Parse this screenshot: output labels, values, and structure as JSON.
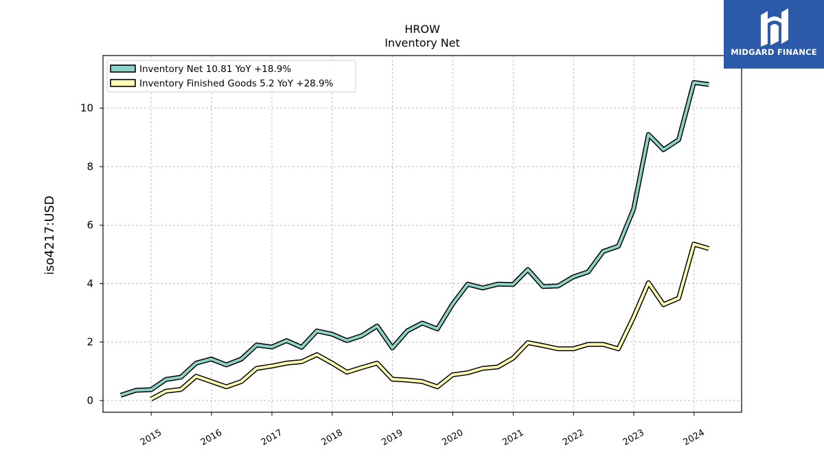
{
  "brand": {
    "name": "MIDGARD FINANCE",
    "color": "#2c5aa8"
  },
  "chart_data": {
    "type": "line",
    "title": "HROW",
    "subtitle": "Inventory Net",
    "ylabel": "iso4217:USD",
    "xlabel": "",
    "ylim": [
      -0.4,
      11.8
    ],
    "xlim": [
      "2014-03-15",
      "2024-10-15"
    ],
    "yticks": [
      0,
      2,
      4,
      6,
      8,
      10
    ],
    "xticks": [
      "2015",
      "2016",
      "2017",
      "2018",
      "2019",
      "2020",
      "2021",
      "2022",
      "2023",
      "2024"
    ],
    "grid": true,
    "legend_position": "top-left",
    "series": [
      {
        "name": "Inventory Net",
        "legend_label": "Inventory Net  10.81 YoY +18.9%",
        "color": "#8dd3c7",
        "points": [
          [
            "2014-06-30",
            0.18
          ],
          [
            "2014-09-30",
            0.35
          ],
          [
            "2014-12-31",
            0.37
          ],
          [
            "2015-03-31",
            0.72
          ],
          [
            "2015-06-30",
            0.8
          ],
          [
            "2015-09-30",
            1.28
          ],
          [
            "2015-12-31",
            1.42
          ],
          [
            "2016-03-31",
            1.22
          ],
          [
            "2016-06-30",
            1.42
          ],
          [
            "2016-09-30",
            1.9
          ],
          [
            "2016-12-31",
            1.83
          ],
          [
            "2017-03-31",
            2.05
          ],
          [
            "2017-06-30",
            1.82
          ],
          [
            "2017-09-30",
            2.38
          ],
          [
            "2017-12-31",
            2.27
          ],
          [
            "2018-03-31",
            2.05
          ],
          [
            "2018-06-30",
            2.22
          ],
          [
            "2018-09-30",
            2.55
          ],
          [
            "2018-12-31",
            1.8
          ],
          [
            "2019-03-31",
            2.38
          ],
          [
            "2019-06-30",
            2.65
          ],
          [
            "2019-09-30",
            2.45
          ],
          [
            "2019-12-31",
            3.3
          ],
          [
            "2020-03-31",
            3.98
          ],
          [
            "2020-06-30",
            3.85
          ],
          [
            "2020-09-30",
            3.98
          ],
          [
            "2020-12-31",
            3.97
          ],
          [
            "2021-03-31",
            4.48
          ],
          [
            "2021-06-30",
            3.9
          ],
          [
            "2021-09-30",
            3.92
          ],
          [
            "2021-12-31",
            4.23
          ],
          [
            "2022-03-31",
            4.4
          ],
          [
            "2022-06-30",
            5.1
          ],
          [
            "2022-09-30",
            5.28
          ],
          [
            "2022-12-31",
            6.55
          ],
          [
            "2023-03-31",
            9.1
          ],
          [
            "2023-06-30",
            8.58
          ],
          [
            "2023-09-30",
            8.92
          ],
          [
            "2023-12-31",
            10.88
          ],
          [
            "2024-03-31",
            10.81
          ]
        ]
      },
      {
        "name": "Inventory Finished Goods",
        "legend_label": "Inventory Finished Goods  5.2 YoY +28.9%",
        "color": "#ffffb3",
        "points": [
          [
            "2014-12-31",
            0.05
          ],
          [
            "2015-03-31",
            0.32
          ],
          [
            "2015-06-30",
            0.38
          ],
          [
            "2015-09-30",
            0.83
          ],
          [
            "2015-12-31",
            0.65
          ],
          [
            "2016-03-31",
            0.47
          ],
          [
            "2016-06-30",
            0.65
          ],
          [
            "2016-09-30",
            1.1
          ],
          [
            "2016-12-31",
            1.18
          ],
          [
            "2017-03-31",
            1.28
          ],
          [
            "2017-06-30",
            1.33
          ],
          [
            "2017-09-30",
            1.57
          ],
          [
            "2017-12-31",
            1.28
          ],
          [
            "2018-03-31",
            0.97
          ],
          [
            "2018-06-30",
            1.13
          ],
          [
            "2018-09-30",
            1.28
          ],
          [
            "2018-12-31",
            0.73
          ],
          [
            "2019-03-31",
            0.7
          ],
          [
            "2019-06-30",
            0.65
          ],
          [
            "2019-09-30",
            0.47
          ],
          [
            "2019-12-31",
            0.88
          ],
          [
            "2020-03-31",
            0.95
          ],
          [
            "2020-06-30",
            1.1
          ],
          [
            "2020-09-30",
            1.15
          ],
          [
            "2020-12-31",
            1.45
          ],
          [
            "2021-03-31",
            1.98
          ],
          [
            "2021-06-30",
            1.88
          ],
          [
            "2021-09-30",
            1.77
          ],
          [
            "2021-12-31",
            1.77
          ],
          [
            "2022-03-31",
            1.92
          ],
          [
            "2022-06-30",
            1.92
          ],
          [
            "2022-09-30",
            1.77
          ],
          [
            "2022-12-31",
            2.85
          ],
          [
            "2023-03-31",
            4.03
          ],
          [
            "2023-06-30",
            3.28
          ],
          [
            "2023-09-30",
            3.5
          ],
          [
            "2023-12-31",
            5.35
          ],
          [
            "2024-03-31",
            5.2
          ]
        ]
      }
    ]
  }
}
